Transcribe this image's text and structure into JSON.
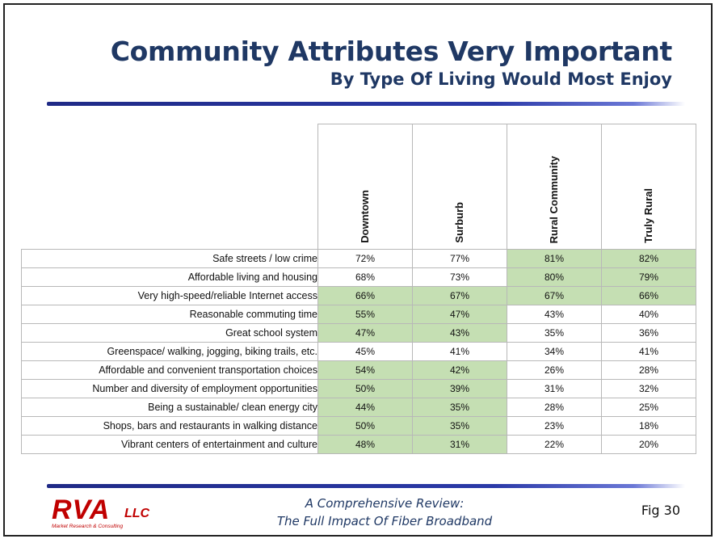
{
  "slide": {
    "title": "Community Attributes Very Important",
    "subtitle": "By Type Of Living Would Most Enjoy"
  },
  "table": {
    "columns": [
      "Downtown",
      "Surburb",
      "Rural Community",
      "Truly Rural"
    ],
    "highlight_color": "#c5dfb3",
    "rows": [
      {
        "label": "Safe streets / low crime",
        "values": [
          "72%",
          "77%",
          "81%",
          "82%"
        ],
        "highlight": [
          false,
          false,
          true,
          true
        ]
      },
      {
        "label": "Affordable living and housing",
        "values": [
          "68%",
          "73%",
          "80%",
          "79%"
        ],
        "highlight": [
          false,
          false,
          true,
          true
        ]
      },
      {
        "label": "Very high-speed/reliable Internet access",
        "values": [
          "66%",
          "67%",
          "67%",
          "66%"
        ],
        "highlight": [
          true,
          true,
          true,
          true
        ]
      },
      {
        "label": "Reasonable commuting time",
        "values": [
          "55%",
          "47%",
          "43%",
          "40%"
        ],
        "highlight": [
          true,
          true,
          false,
          false
        ]
      },
      {
        "label": "Great school system",
        "values": [
          "47%",
          "43%",
          "35%",
          "36%"
        ],
        "highlight": [
          true,
          true,
          false,
          false
        ]
      },
      {
        "label": "Greenspace/ walking, jogging, biking trails, etc.",
        "values": [
          "45%",
          "41%",
          "34%",
          "41%"
        ],
        "highlight": [
          false,
          false,
          false,
          false
        ]
      },
      {
        "label": "Affordable and convenient transportation choices",
        "values": [
          "54%",
          "42%",
          "26%",
          "28%"
        ],
        "highlight": [
          true,
          true,
          false,
          false
        ]
      },
      {
        "label": "Number and diversity of employment opportunities",
        "values": [
          "50%",
          "39%",
          "31%",
          "32%"
        ],
        "highlight": [
          true,
          true,
          false,
          false
        ]
      },
      {
        "label": "Being a sustainable/ clean energy city",
        "values": [
          "44%",
          "35%",
          "28%",
          "25%"
        ],
        "highlight": [
          true,
          true,
          false,
          false
        ]
      },
      {
        "label": "Shops, bars and restaurants in walking distance",
        "values": [
          "50%",
          "35%",
          "23%",
          "18%"
        ],
        "highlight": [
          true,
          true,
          false,
          false
        ]
      },
      {
        "label": "Vibrant centers of entertainment and culture",
        "values": [
          "48%",
          "31%",
          "22%",
          "20%"
        ],
        "highlight": [
          true,
          true,
          false,
          false
        ]
      }
    ]
  },
  "footer": {
    "logo_main": "RVA",
    "logo_suffix": "LLC",
    "logo_tagline": "Market Research & Consulting",
    "line1": "A Comprehensive  Review:",
    "line2": "The Full Impact Of Fiber Broadband",
    "figure_label": "Fig 30"
  }
}
